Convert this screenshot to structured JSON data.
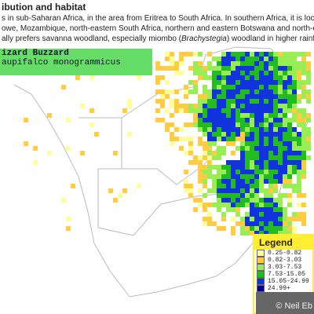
{
  "header": {
    "title": "ibution and habitat"
  },
  "intro": {
    "line1": "s in sub-Saharan Africa, in the area from Eritrea to South Africa. In southern Africa, it is locally common",
    "line2": "owe, Mozambique, north-eastern South Africa, northern and eastern Botswana and north-eastern Nam",
    "line3_start": "ally prefers savanna woodland, especially miombo (",
    "line3_italic": "Brachystegia",
    "line3_end": ") woodland in higher rainfall areas."
  },
  "species": {
    "common_name": "izard Buzzard",
    "scientific_name": "aupifalco monogrammicus"
  },
  "legend": {
    "title": "Legend",
    "items": [
      {
        "label": "0.25-0.82",
        "color": "#ffff99"
      },
      {
        "label": "0.82-3.03",
        "color": "#ffcc44"
      },
      {
        "label": "3.03-7.53",
        "color": "#99ee55"
      },
      {
        "label": "7.53-15.05",
        "color": "#22bb22"
      },
      {
        "label": "15.05-24.99",
        "color": "#1133dd"
      },
      {
        "label": "24.99+",
        "color": "#000088"
      }
    ]
  },
  "watermark": "© Neil Eb"
}
